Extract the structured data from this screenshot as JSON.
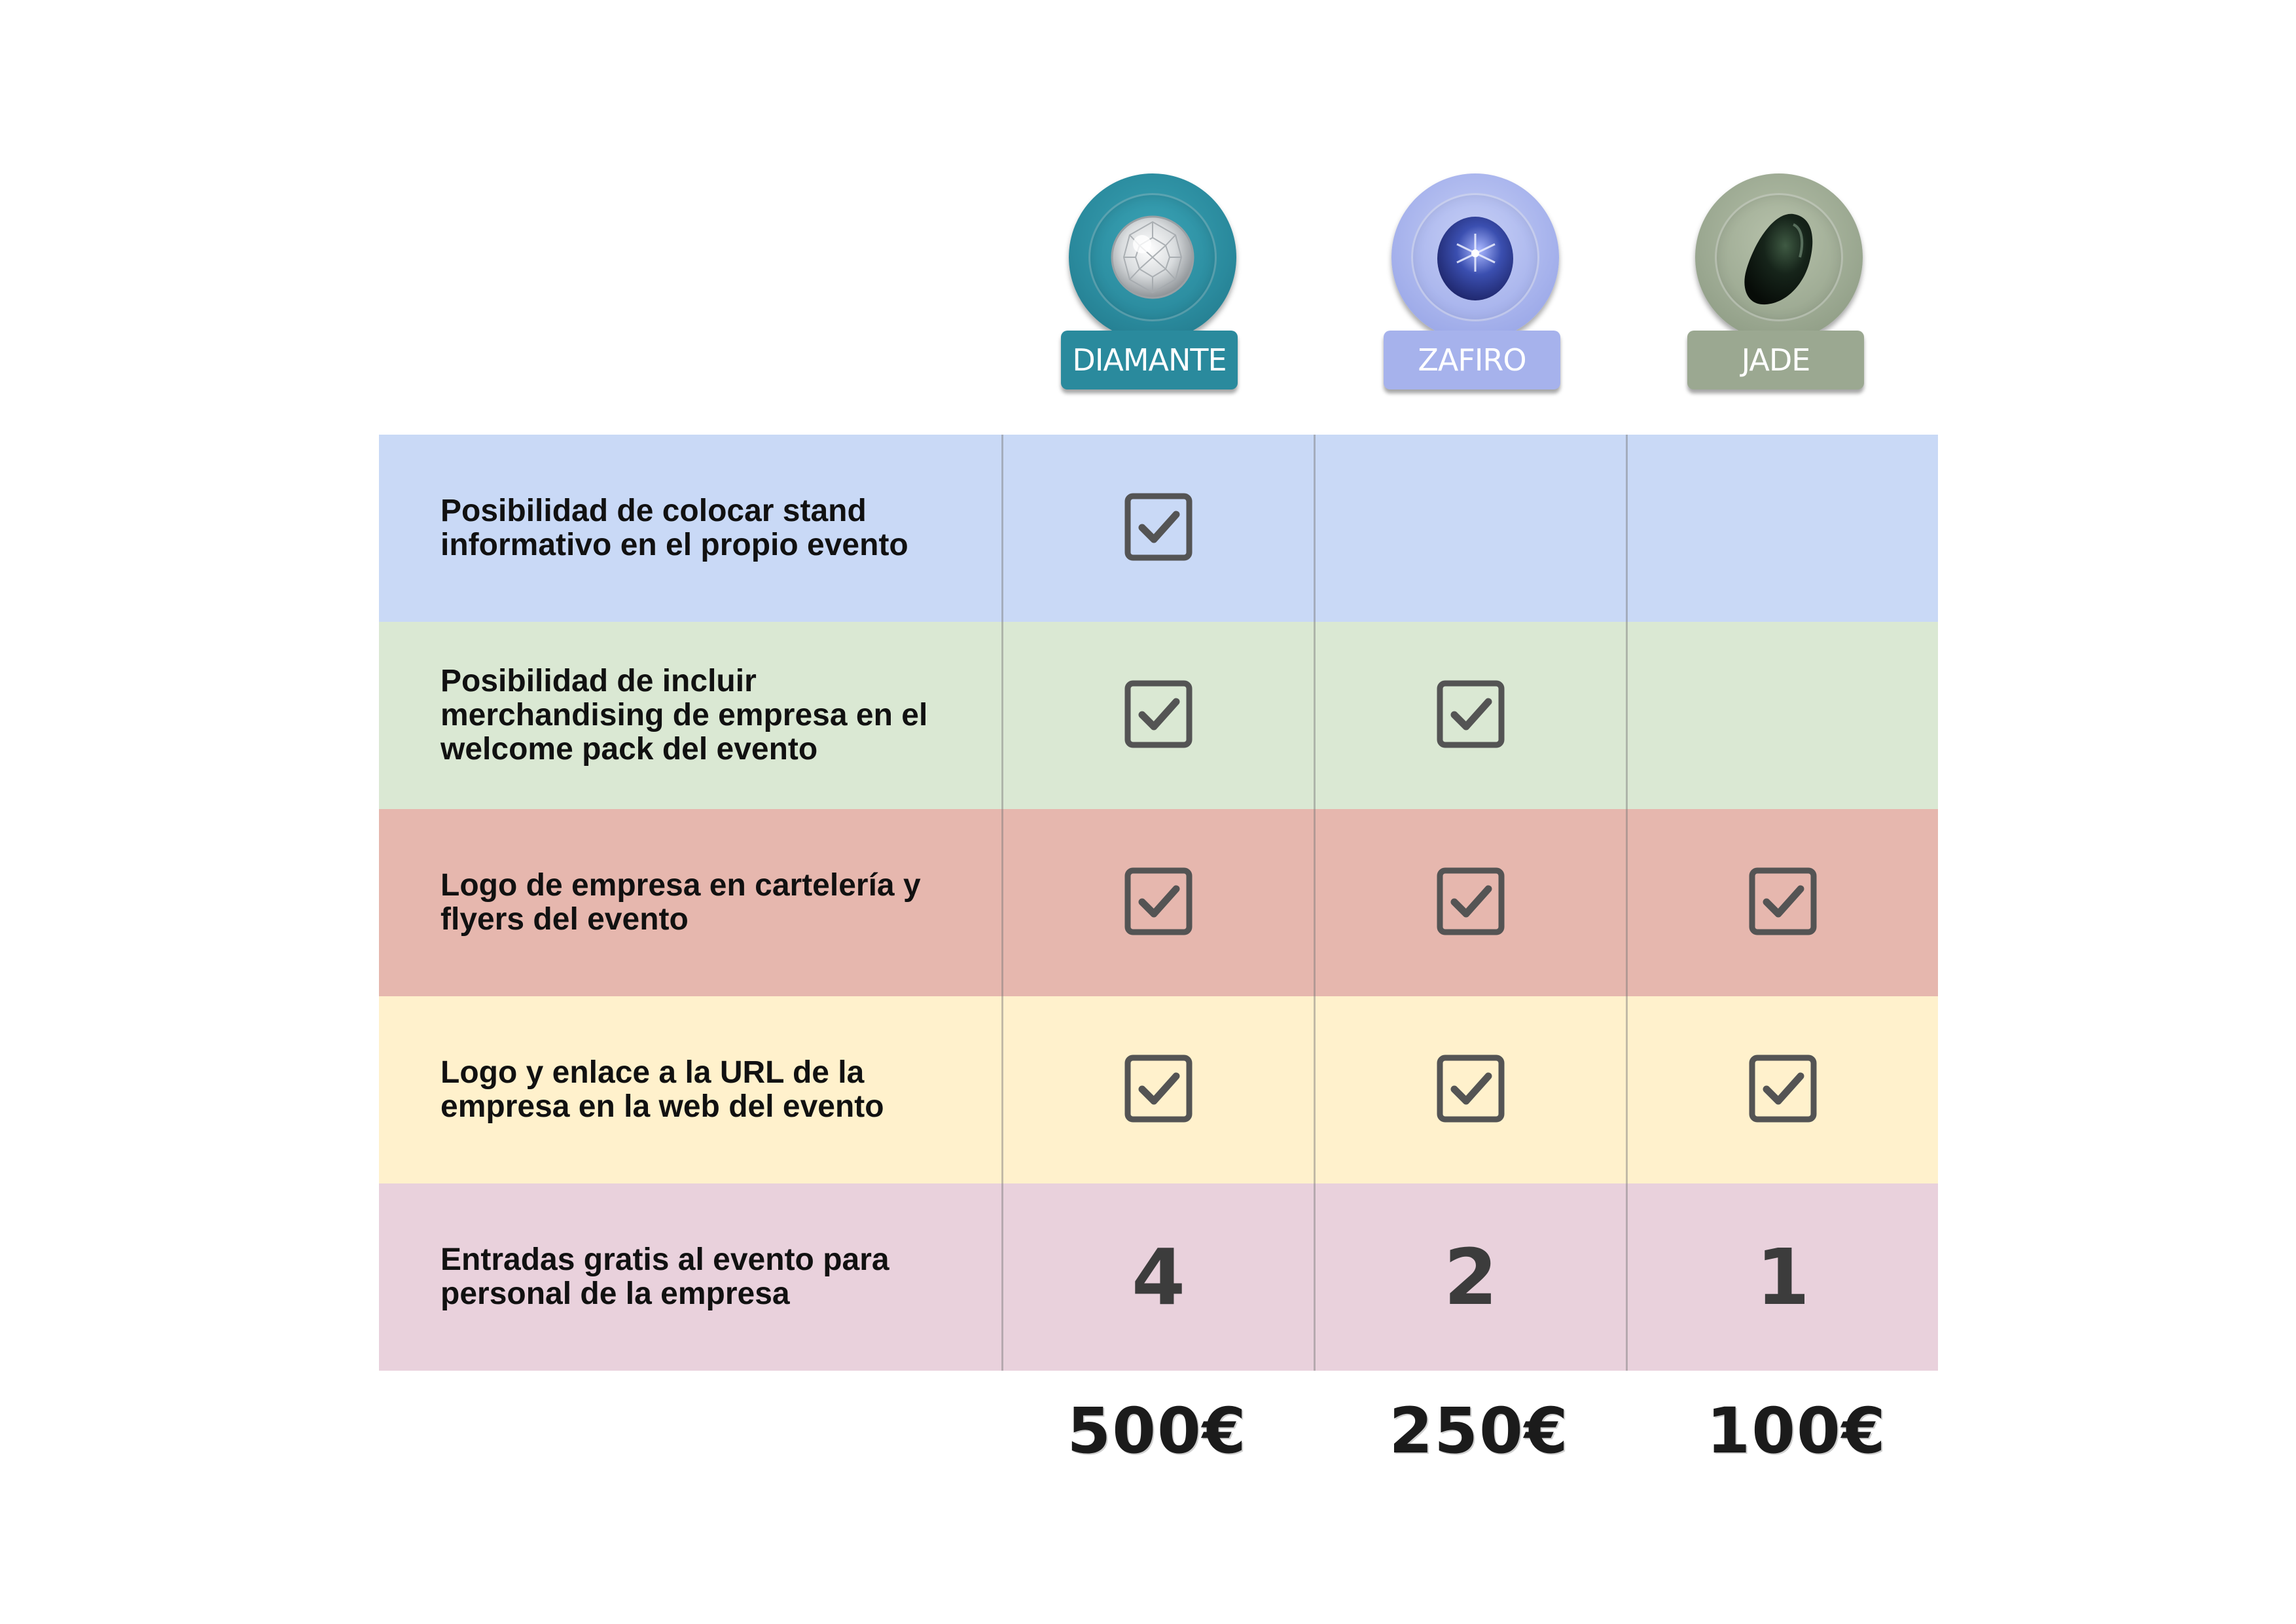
{
  "tiers": [
    {
      "key": "diamante",
      "label": "DIAMANTE",
      "price": "500€",
      "color": "#2a8a9d",
      "icon": "diamond-gem-icon"
    },
    {
      "key": "zafiro",
      "label": "ZAFIRO",
      "price": "250€",
      "color": "#a6b2ec",
      "icon": "sapphire-gem-icon"
    },
    {
      "key": "jade",
      "label": "JADE",
      "price": "100€",
      "color": "#9ba891",
      "icon": "jade-stone-icon"
    }
  ],
  "rows": [
    {
      "feature": "Posibilidad de colocar stand\ninformativo en el propio evento",
      "background": "#c9d9f6",
      "diamante": true,
      "zafiro": false,
      "jade": false
    },
    {
      "feature": "Posibilidad de incluir\nmerchandising de empresa en el\nwelcome pack del evento",
      "background": "#dae8d3",
      "diamante": true,
      "zafiro": true,
      "jade": false
    },
    {
      "feature": "Logo de empresa en cartelería y\nflyers del evento",
      "background": "#e6b7ae",
      "diamante": true,
      "zafiro": true,
      "jade": true
    },
    {
      "feature": "Logo y enlace a la URL de la\nempresa en la web del evento",
      "background": "#fff1cc",
      "diamante": true,
      "zafiro": true,
      "jade": true
    },
    {
      "feature": "Entradas gratis al evento para\npersonal de la empresa",
      "background": "#e9d1dc",
      "diamante": "4",
      "zafiro": "2",
      "jade": "1"
    }
  ],
  "checkbox_icon": "checked-box-icon",
  "checkbox_color": "#545454"
}
